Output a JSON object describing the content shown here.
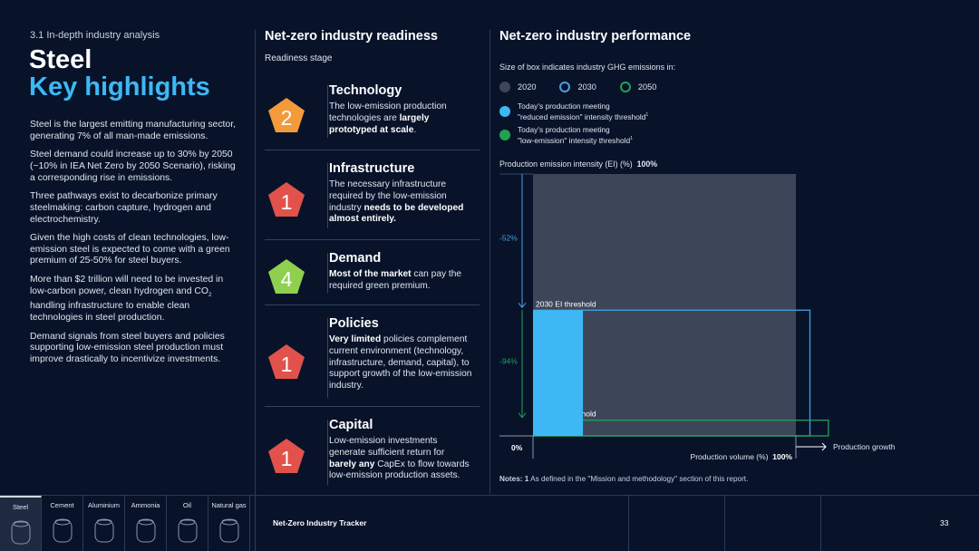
{
  "header": {
    "section": "3.1  In-depth industry analysis",
    "title": "Steel",
    "subtitle": "Key highlights"
  },
  "highlights": [
    "Steel is the largest emitting manufacturing sector, generating 7% of all man-made emissions.",
    "Steel demand could increase up to 30% by 2050 (~10% in IEA Net Zero by 2050 Scenario), risking a corresponding rise in emissions.",
    "Three pathways exist to decarbonize primary steelmaking: carbon capture, hydrogen and electrochemistry.",
    "Given the high costs of clean technologies, low-emission steel is expected to come with a green premium of 25-50% for steel buyers.",
    {
      "pre": "More than $2 trillion will need to be invested in low-carbon power, clean hydrogen and CO",
      "sub": "2",
      "post": " handling infrastructure to enable clean technologies in steel production."
    },
    "Demand signals from steel buyers and policies supporting low-emission steel production must improve drastically to incentivize investments."
  ],
  "readiness": {
    "title": "Net-zero industry readiness",
    "subtitle": "Readiness stage",
    "items": [
      {
        "score": "2",
        "color": "#f39a3a",
        "title": "Technology",
        "pre": "The low-emission production technologies are ",
        "bold": "largely prototyped at scale",
        "post": "."
      },
      {
        "score": "1",
        "color": "#e0524b",
        "title": "Infrastructure",
        "pre": "The necessary infrastructure required by the low-emission industry ",
        "bold": "needs to be developed almost entirely.",
        "post": ""
      },
      {
        "score": "4",
        "color": "#8fd14f",
        "title": "Demand",
        "pre": "",
        "bold": "Most of the market",
        "post": " can pay the required green premium."
      },
      {
        "score": "1",
        "color": "#e0524b",
        "title": "Policies",
        "pre": "",
        "bold": "Very limited",
        "post": " policies complement current environment (technology, infrastructure, demand, capital), to support growth of the low-emission industry."
      },
      {
        "score": "1",
        "color": "#e0524b",
        "title": "Capital",
        "pre": "Low-emission investments generate sufficient return for ",
        "bold": "barely any",
        "post": " CapEx to flow towards low-emission production assets."
      }
    ]
  },
  "performance": {
    "title": "Net-zero industry performance",
    "legend_caption": "Size of box indicates industry GHG emissions in:",
    "legend_years": [
      {
        "label": "2020",
        "color": "#3d4658"
      },
      {
        "label": "2030",
        "color": "#4a9fe0"
      },
      {
        "label": "2050",
        "color": "#21a05a"
      }
    ],
    "legend_fills": [
      {
        "line1": "Today's production meeting",
        "line2": "\"reduced emission\" intensity threshold",
        "sup": "1",
        "color": "#3db8f5"
      },
      {
        "line1": "Today's production meeting",
        "line2": "\"low-emission\" intensity threshold",
        "sup": "1",
        "color": "#1fa34e"
      }
    ],
    "notes_label": "Notes: 1",
    "notes": "As defined in the \"Mission and methodology\" section of this report."
  },
  "chart_data": {
    "type": "box-area",
    "ylabel": "Production emission intensity (EI) (%)",
    "ymax_label": "100%",
    "origin_label": "0%",
    "xlabel": "Production volume (%)",
    "xmax_label": "100%",
    "growth_label": "Production growth",
    "boxes": [
      {
        "name": "2020",
        "volume": 100,
        "intensity": 100,
        "color": "#3d4658",
        "style": "fill"
      },
      {
        "name": "2030",
        "label": "2030 EI threshold",
        "volume": 105,
        "intensity": 48,
        "color": "#4a9fe0",
        "style": "outline"
      },
      {
        "name": "2050",
        "label": "2050 EI threshold",
        "volume": 112,
        "intensity": 6,
        "color": "#21a05a",
        "style": "outline"
      },
      {
        "name": "reduced-emission",
        "volume": 19,
        "intensity": 48,
        "color": "#3db8f5",
        "style": "fill"
      }
    ],
    "reductions": [
      {
        "label": "-52%",
        "from": 100,
        "to": 48,
        "color": "#4a9fe0"
      },
      {
        "label": "-94%",
        "from": 48,
        "to": 6,
        "color": "#21a05a"
      }
    ]
  },
  "footer": {
    "tabs": [
      "Steel",
      "Cement",
      "Aluminium",
      "Ammonia",
      "Oil",
      "Natural gas"
    ],
    "active": 0,
    "tracker": "Net-Zero Industry Tracker",
    "page": "33"
  }
}
